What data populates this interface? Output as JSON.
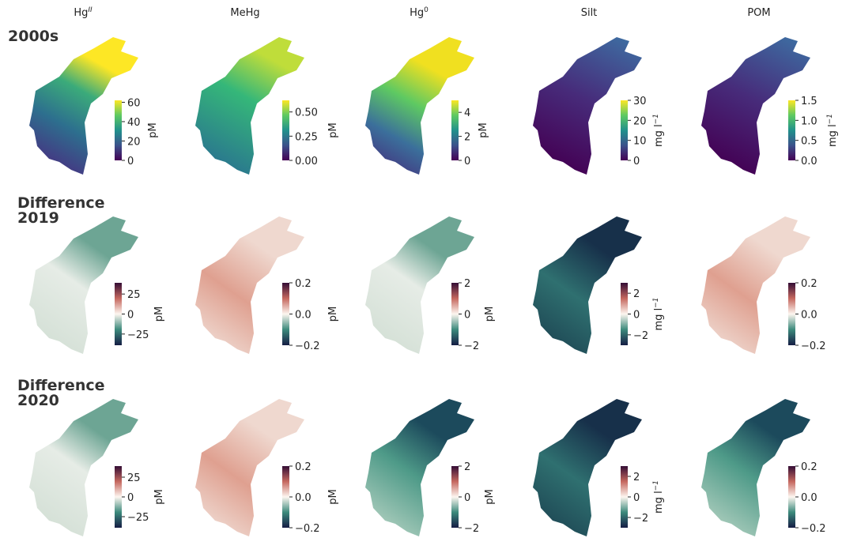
{
  "columns": [
    {
      "title": {
        "base": "Hg",
        "sup": "II"
      }
    },
    {
      "title": {
        "base": "MeHg"
      }
    },
    {
      "title": {
        "base": "Hg",
        "sup": "0"
      }
    },
    {
      "title": {
        "base": "Silt"
      }
    },
    {
      "title": {
        "base": "POM"
      }
    }
  ],
  "rows": [
    {
      "label": [
        "2000s"
      ],
      "colormap": "viridis",
      "colorbars": [
        {
          "lim": [
            0,
            62
          ],
          "ticks": [
            0,
            20,
            40,
            60
          ],
          "unit": {
            "base": "pM"
          }
        },
        {
          "lim": [
            0,
            0.62
          ],
          "ticks": [
            {
              "value": 0,
              "label": "0.00"
            },
            0.25,
            {
              "value": 0.5,
              "label": "0.50"
            }
          ],
          "unit": {
            "base": "pM"
          }
        },
        {
          "lim": [
            0,
            5
          ],
          "ticks": [
            0,
            2,
            4
          ],
          "unit": {
            "base": "pM"
          }
        },
        {
          "lim": [
            0,
            30
          ],
          "ticks": [
            0,
            10,
            20,
            30
          ],
          "unit": {
            "base": "mg l",
            "sup": "−1"
          }
        },
        {
          "lim": [
            0,
            1.5
          ],
          "ticks": [
            {
              "value": 0,
              "label": "0.0"
            },
            0.5,
            {
              "value": 1,
              "label": "1.0"
            },
            1.5
          ],
          "unit": {
            "base": "mg l",
            "sup": "−1"
          }
        }
      ]
    },
    {
      "label": [
        "Difference",
        "2019"
      ],
      "colormap": "curl",
      "colorbars": [
        {
          "lim": [
            -39,
            39
          ],
          "ticks": [
            {
              "value": -25,
              "label": "−25"
            },
            0,
            25
          ],
          "unit": {
            "base": "pM"
          }
        },
        {
          "lim": [
            -0.2,
            0.2
          ],
          "ticks": [
            {
              "value": -0.2,
              "label": "−0.2"
            },
            {
              "value": 0,
              "label": "0.0"
            },
            0.2
          ],
          "unit": {
            "base": "pM"
          }
        },
        {
          "lim": [
            -2,
            2
          ],
          "ticks": [
            {
              "value": -2,
              "label": "−2"
            },
            0,
            2
          ],
          "unit": {
            "base": "pM"
          }
        },
        {
          "lim": [
            -3,
            3
          ],
          "ticks": [
            {
              "value": -2,
              "label": "−2"
            },
            0,
            2
          ],
          "unit": {
            "base": "mg l",
            "sup": "−1"
          }
        },
        {
          "lim": [
            -0.2,
            0.2
          ],
          "ticks": [
            {
              "value": -0.2,
              "label": "−0.2"
            },
            {
              "value": 0,
              "label": "0.0"
            },
            0.2
          ]
        }
      ]
    },
    {
      "label": [
        "Difference",
        "2020"
      ],
      "colormap": "curl",
      "colorbars": [
        {
          "lim": [
            -39,
            39
          ],
          "ticks": [
            {
              "value": -25,
              "label": "−25"
            },
            0,
            25
          ],
          "unit": {
            "base": "pM"
          }
        },
        {
          "lim": [
            -0.2,
            0.2
          ],
          "ticks": [
            {
              "value": -0.2,
              "label": "−0.2"
            },
            {
              "value": 0,
              "label": "0.0"
            },
            0.2
          ],
          "unit": {
            "base": "pM"
          }
        },
        {
          "lim": [
            -2,
            2
          ],
          "ticks": [
            {
              "value": -2,
              "label": "−2"
            },
            0,
            2
          ],
          "unit": {
            "base": "pM"
          }
        },
        {
          "lim": [
            -3,
            3
          ],
          "ticks": [
            {
              "value": -2,
              "label": "−2"
            },
            0,
            2
          ],
          "unit": {
            "base": "mg l",
            "sup": "−1"
          }
        },
        {
          "lim": [
            -0.2,
            0.2
          ],
          "ticks": [
            {
              "value": -0.2,
              "label": "−0.2"
            },
            {
              "value": 0,
              "label": "0.0"
            },
            0.2
          ]
        }
      ]
    }
  ]
}
